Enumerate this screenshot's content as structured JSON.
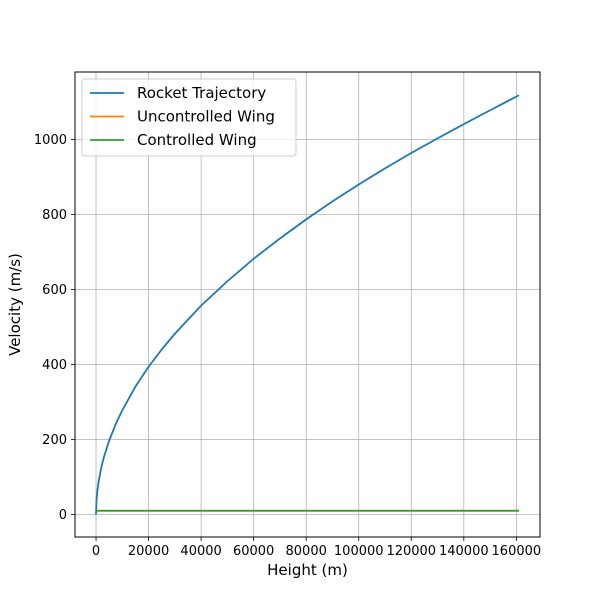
{
  "chart_data": {
    "type": "line",
    "title": "",
    "xlabel": "Height (m)",
    "ylabel": "Velocity (m/s)",
    "xlim": [
      -8000,
      169000
    ],
    "ylim": [
      -60,
      1180
    ],
    "xticks": [
      0,
      20000,
      40000,
      60000,
      80000,
      100000,
      120000,
      140000,
      160000
    ],
    "xtick_labels": [
      "0",
      "20000",
      "40000",
      "60000",
      "80000",
      "100000",
      "120000",
      "140000",
      "160000"
    ],
    "yticks": [
      0,
      200,
      400,
      600,
      800,
      1000
    ],
    "ytick_labels": [
      "0",
      "200",
      "400",
      "600",
      "800",
      "1000"
    ],
    "grid": true,
    "legend_position": "top-left",
    "series": [
      {
        "name": "Rocket Trajectory",
        "color": "#1f77b4",
        "x": [
          0,
          200,
          500,
          1000,
          2000,
          3000,
          5000,
          7500,
          10000,
          15000,
          20000,
          25000,
          30000,
          40000,
          50000,
          60000,
          70000,
          80000,
          90000,
          100000,
          110000,
          120000,
          130000,
          140000,
          150000,
          161000
        ],
        "y": [
          0,
          40,
          62,
          88,
          125,
          153,
          197,
          241,
          278,
          341,
          394,
          440,
          482,
          557,
          622,
          682,
          736,
          787,
          835,
          880,
          923,
          964,
          1003,
          1041,
          1078,
          1118
        ]
      },
      {
        "name": "Uncontrolled Wing",
        "color": "#ff7f0e",
        "x": [
          0,
          161000
        ],
        "y": [
          10,
          10
        ]
      },
      {
        "name": "Controlled Wing",
        "color": "#2ca02c",
        "x": [
          0,
          161000
        ],
        "y": [
          10,
          10
        ]
      }
    ]
  }
}
